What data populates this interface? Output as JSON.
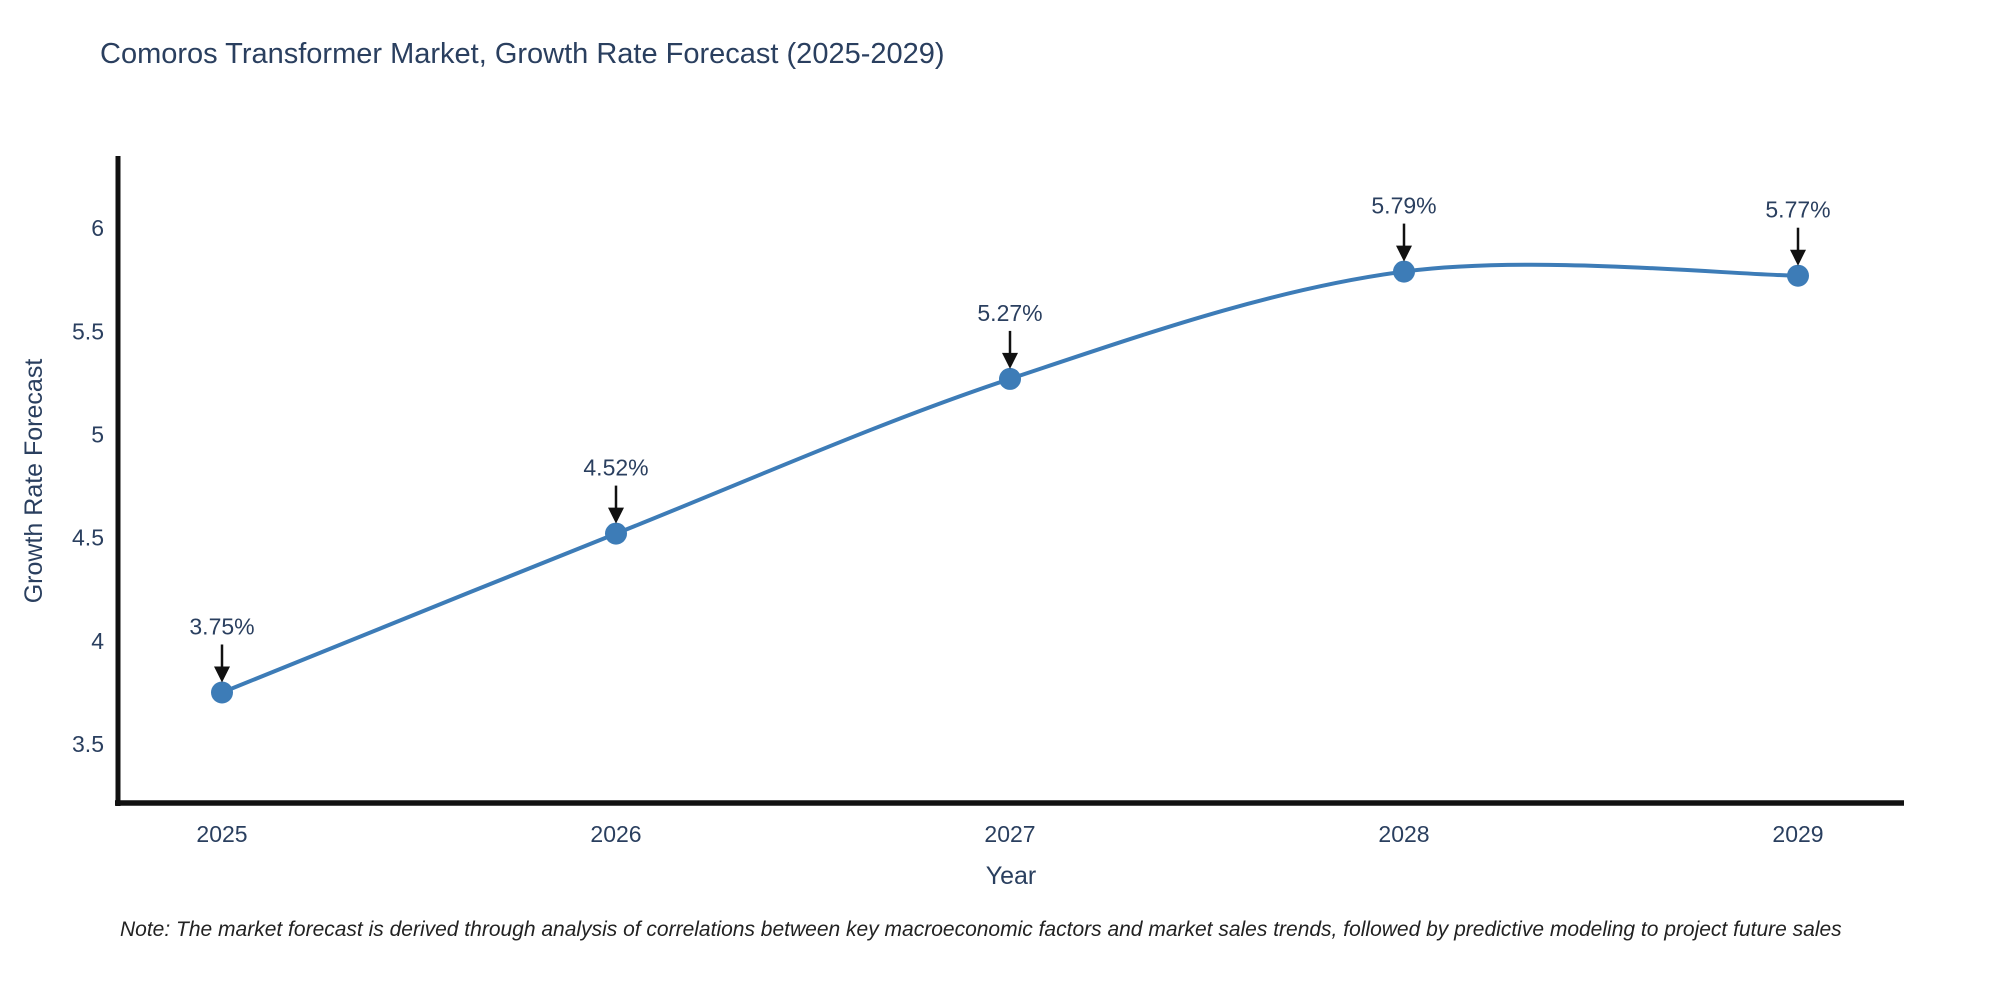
{
  "page": {
    "title": "Comoros Transformer Market, Growth Rate Forecast (2025-2029)",
    "note": "Note: The market forecast is derived through analysis of correlations between key macroeconomic factors and market sales trends, followed by predictive modeling to project future sales"
  },
  "chart_data": {
    "type": "line",
    "title": "Comoros Transformer Market, Growth Rate Forecast (2025-2029)",
    "x": [
      2025,
      2026,
      2027,
      2028,
      2029
    ],
    "series": [
      {
        "name": "Growth Rate Forecast",
        "values": [
          3.75,
          4.52,
          5.27,
          5.79,
          5.77
        ]
      }
    ],
    "point_labels": [
      "3.75%",
      "4.52%",
      "5.27%",
      "5.79%",
      "5.77%"
    ],
    "xlabel": "Year",
    "ylabel": "Growth Rate Forecast",
    "ylim": [
      3.2,
      6.35
    ],
    "yticks": [
      3.5,
      4,
      4.5,
      5,
      5.5,
      6
    ],
    "grid": false,
    "legend": "none",
    "line_shape": "spline",
    "annotation_arrows": true,
    "colors": {
      "line": "#3d7cb7",
      "marker": "#3d7cb7",
      "axis": "#111111",
      "tick_text": "#2a3f5f",
      "annotation_text": "#2a3f5f",
      "arrow": "#111111",
      "background": "#ffffff"
    }
  }
}
